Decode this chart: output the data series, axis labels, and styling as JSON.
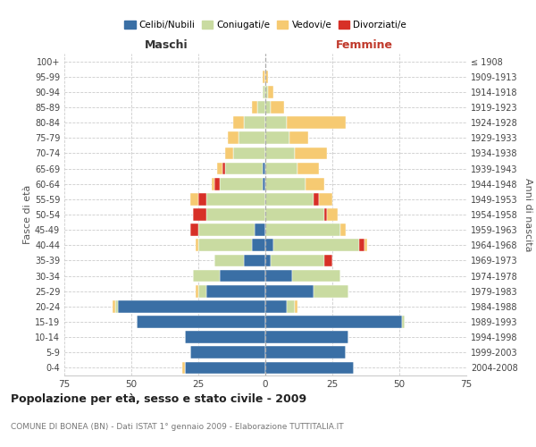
{
  "age_groups": [
    "0-4",
    "5-9",
    "10-14",
    "15-19",
    "20-24",
    "25-29",
    "30-34",
    "35-39",
    "40-44",
    "45-49",
    "50-54",
    "55-59",
    "60-64",
    "65-69",
    "70-74",
    "75-79",
    "80-84",
    "85-89",
    "90-94",
    "95-99",
    "100+"
  ],
  "birth_years": [
    "2004-2008",
    "1999-2003",
    "1994-1998",
    "1989-1993",
    "1984-1988",
    "1979-1983",
    "1974-1978",
    "1969-1973",
    "1964-1968",
    "1959-1963",
    "1954-1958",
    "1949-1953",
    "1944-1948",
    "1939-1943",
    "1934-1938",
    "1929-1933",
    "1924-1928",
    "1919-1923",
    "1914-1918",
    "1909-1913",
    "≤ 1908"
  ],
  "male_celibi": [
    30,
    28,
    30,
    48,
    55,
    22,
    17,
    8,
    5,
    4,
    0,
    0,
    1,
    1,
    0,
    0,
    0,
    0,
    0,
    0,
    0
  ],
  "male_coniugati": [
    0,
    0,
    0,
    0,
    1,
    3,
    10,
    11,
    20,
    21,
    22,
    22,
    16,
    14,
    12,
    10,
    8,
    3,
    1,
    0,
    0
  ],
  "male_vedovi": [
    1,
    0,
    0,
    0,
    1,
    1,
    0,
    0,
    1,
    0,
    0,
    3,
    1,
    2,
    3,
    4,
    4,
    2,
    0,
    1,
    0
  ],
  "male_divorziati": [
    0,
    0,
    0,
    0,
    0,
    0,
    0,
    0,
    0,
    3,
    5,
    3,
    2,
    1,
    0,
    0,
    0,
    0,
    0,
    0,
    0
  ],
  "female_nubili": [
    33,
    30,
    31,
    51,
    8,
    18,
    10,
    2,
    3,
    0,
    0,
    0,
    0,
    0,
    0,
    0,
    0,
    0,
    0,
    0,
    0
  ],
  "female_coniugate": [
    0,
    0,
    0,
    1,
    3,
    13,
    18,
    20,
    32,
    28,
    22,
    18,
    15,
    12,
    11,
    9,
    8,
    2,
    1,
    0,
    0
  ],
  "female_vedove": [
    0,
    0,
    0,
    0,
    1,
    0,
    0,
    0,
    1,
    2,
    4,
    5,
    7,
    8,
    12,
    7,
    22,
    5,
    2,
    1,
    0
  ],
  "female_divorziate": [
    0,
    0,
    0,
    0,
    0,
    0,
    0,
    3,
    2,
    0,
    1,
    2,
    0,
    0,
    0,
    0,
    0,
    0,
    0,
    0,
    0
  ],
  "color_celibi": "#3a6fa5",
  "color_coniugati": "#c9dba1",
  "color_vedovi": "#f6ca72",
  "color_divorziati": "#d73027",
  "title": "Popolazione per età, sesso e stato civile - 2009",
  "subtitle": "COMUNE DI BONEA (BN) - Dati ISTAT 1° gennaio 2009 - Elaborazione TUTTITALIA.IT",
  "legend_labels": [
    "Celibi/Nubili",
    "Coniugati/e",
    "Vedovi/e",
    "Divorziati/e"
  ],
  "xlabel_left": "Maschi",
  "xlabel_right": "Femmine",
  "ylabel_left": "Fasce di età",
  "ylabel_right": "Anni di nascita",
  "xlim": 75
}
